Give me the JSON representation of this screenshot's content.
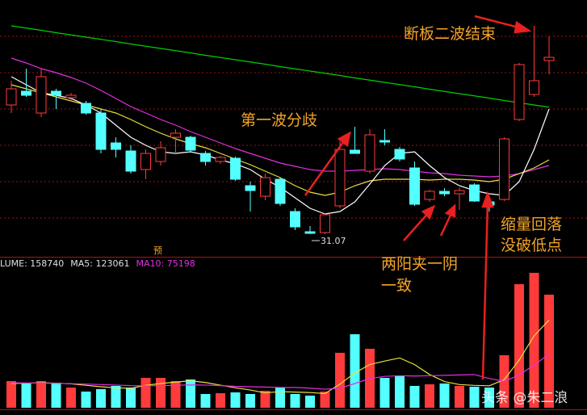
{
  "chart_data": [
    {
      "type": "candlestick",
      "open": [
        37.47,
        38.15,
        37.07,
        38.15,
        37.83,
        37.55,
        37.07,
        35.59,
        35.19,
        34.27,
        34.67,
        35.87,
        35.87,
        35.07,
        34.67,
        34.83,
        33.47,
        32.95,
        33.79,
        32.19,
        31.19,
        31.15,
        32.47,
        35.23,
        34.19,
        35.71,
        35.27,
        34.35,
        32.79,
        33.19,
        33.07,
        33.51,
        32.67,
        32.79,
        36.75,
        37.99,
        39.67
      ],
      "high": [
        38.67,
        39.27,
        39.27,
        38.27,
        38.07,
        37.67,
        37.27,
        35.87,
        35.47,
        35.27,
        35.67,
        36.27,
        35.95,
        35.19,
        34.95,
        34.91,
        33.67,
        34.07,
        33.87,
        32.35,
        31.47,
        32.11,
        35.67,
        36.39,
        36.27,
        36.27,
        35.39,
        34.67,
        33.27,
        33.35,
        33.39,
        33.59,
        32.87,
        35.87,
        39.55,
        41.39,
        40.87
      ],
      "low": [
        37.07,
        37.87,
        36.87,
        37.27,
        37.67,
        36.99,
        35.07,
        34.87,
        34.07,
        33.79,
        34.47,
        35.07,
        35.15,
        34.47,
        34.55,
        33.71,
        32.19,
        32.75,
        32.47,
        31.27,
        31.07,
        31.07,
        32.35,
        35.07,
        34.07,
        35.47,
        34.67,
        32.47,
        32.67,
        32.95,
        32.27,
        32.67,
        32.19,
        32.71,
        36.67,
        37.87,
        38.99
      ],
      "close": [
        38.27,
        37.95,
        38.87,
        37.95,
        37.95,
        37.07,
        35.27,
        35.27,
        34.19,
        35.07,
        35.35,
        36.07,
        35.23,
        34.67,
        34.87,
        33.79,
        33.23,
        33.87,
        32.59,
        31.43,
        31.11,
        32.03,
        35.27,
        35.07,
        35.99,
        35.63,
        34.79,
        32.55,
        33.19,
        33.07,
        33.23,
        32.71,
        32.51,
        35.79,
        39.47,
        38.67,
        39.83
      ],
      "up_color": "#ff3b3b",
      "down_color": "#54ffff",
      "ylim": [
        29.95,
        42.67
      ],
      "yticks": [
        40.87,
        39.07,
        37.27,
        35.47,
        33.67,
        31.87
      ],
      "grid": true,
      "low_label_index": 20,
      "lines": [
        {
          "color": "#00d000",
          "values": [
            41.39,
            41.28,
            41.17,
            41.05,
            40.94,
            40.83,
            40.72,
            40.61,
            40.49,
            40.38,
            40.27,
            40.16,
            40.05,
            39.93,
            39.82,
            39.71,
            39.6,
            39.49,
            39.37,
            39.26,
            39.15,
            39.04,
            38.93,
            38.81,
            38.7,
            38.59,
            38.48,
            38.37,
            38.25,
            38.14,
            38.03,
            37.92,
            37.81,
            37.69,
            37.58,
            37.47,
            37.36
          ]
        },
        {
          "color": "#e030e0",
          "values": [
            39.79,
            39.55,
            39.27,
            39.07,
            38.83,
            38.55,
            38.19,
            37.79,
            37.39,
            37.07,
            36.75,
            36.47,
            36.15,
            35.87,
            35.59,
            35.31,
            35.07,
            34.83,
            34.59,
            34.43,
            34.27,
            34.19,
            34.19,
            34.23,
            34.27,
            34.31,
            34.27,
            34.19,
            34.11,
            34.07,
            33.99,
            33.95,
            33.91,
            33.95,
            34.07,
            34.27,
            34.47
          ]
        },
        {
          "color": "#e8e040",
          "values": [
            38.47,
            38.27,
            38.07,
            37.87,
            37.67,
            37.47,
            37.27,
            37.07,
            36.75,
            36.39,
            36.07,
            35.79,
            35.55,
            35.35,
            35.07,
            34.79,
            34.51,
            34.19,
            33.87,
            33.47,
            33.15,
            32.99,
            33.15,
            33.47,
            33.71,
            33.79,
            33.79,
            33.79,
            33.75,
            33.79,
            33.79,
            33.75,
            33.67,
            33.79,
            34.07,
            34.35,
            34.75
          ]
        },
        {
          "color": "#ffffff",
          "values": [
            38.87,
            38.47,
            38.07,
            37.95,
            37.79,
            37.47,
            37.07,
            36.47,
            35.87,
            35.47,
            35.15,
            35.07,
            35.15,
            34.99,
            34.75,
            34.55,
            34.27,
            33.79,
            33.39,
            32.87,
            32.35,
            32.07,
            32.19,
            32.67,
            33.55,
            34.47,
            35.07,
            35.15,
            34.47,
            33.87,
            33.47,
            33.23,
            33.07,
            32.99,
            33.67,
            35.27,
            37.27
          ]
        }
      ]
    },
    {
      "type": "bar",
      "header": [
        "LUME: 158740",
        "MA5: 123061",
        "MA10: 75198"
      ],
      "header_colors": [
        "#e0e0e0",
        "#e0e0e0",
        "#e030e0"
      ],
      "values": [
        37400,
        34000,
        37400,
        35150,
        28350,
        22680,
        26080,
        30620,
        28350,
        41960,
        41960,
        37420,
        39690,
        19280,
        20410,
        21550,
        19280,
        23810,
        28350,
        19280,
        17010,
        22680,
        77110,
        103190,
        82780,
        41960,
        44220,
        30620,
        32890,
        34020,
        30620,
        29480,
        28350,
        73710,
        173500,
        189380,
        158740
      ],
      "ylim": [
        0,
        204000
      ],
      "lines": [
        {
          "color": "#e8e040",
          "values": [
            34000,
            34500,
            35000,
            34500,
            33500,
            31500,
            29500,
            28000,
            27200,
            31500,
            34000,
            36000,
            37800,
            35400,
            31700,
            28000,
            24900,
            20900,
            22600,
            22000,
            21300,
            19900,
            33100,
            48800,
            60600,
            65500,
            69900,
            60500,
            46700,
            36800,
            32500,
            31400,
            30800,
            39400,
            67000,
            100900,
            123061
          ]
        },
        {
          "color": "#e030e0",
          "values": [
            35000,
            34800,
            34500,
            34200,
            33800,
            33200,
            32500,
            31800,
            31000,
            30800,
            31000,
            31500,
            32000,
            31800,
            31000,
            30000,
            29500,
            29000,
            28500,
            28500,
            27500,
            26000,
            27500,
            34000,
            41000,
            44000,
            45000,
            44500,
            45000,
            45500,
            46000,
            46500,
            41000,
            37000,
            46000,
            60000,
            75198
          ]
        }
      ]
    }
  ],
  "annotations": [
    "断板二波结束",
    "第一波分歧",
    "两阳夹一阴",
    "一致",
    "缩量回落",
    "没破低点"
  ],
  "marker": "预",
  "watermark": "头条 @朱二浪"
}
